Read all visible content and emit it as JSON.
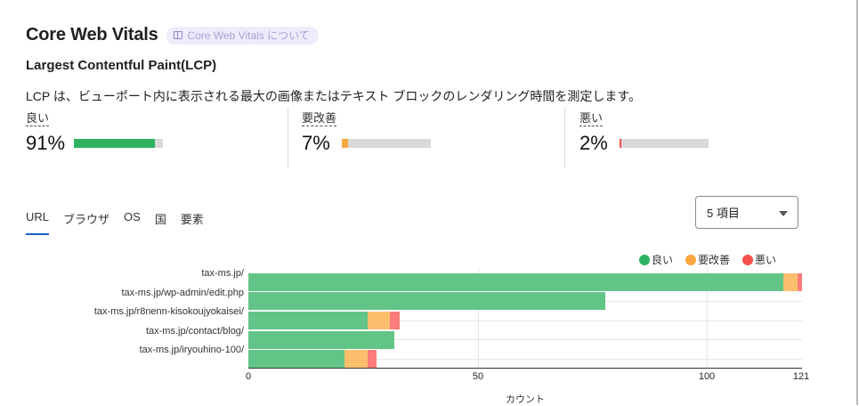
{
  "header": {
    "title": "Core Web Vitals",
    "about_chip": {
      "icon": "book-icon",
      "label": "Core Web Vitals について"
    }
  },
  "section": {
    "title": "Largest Contentful Paint(LCP)",
    "description": "LCP は、ビューポート内に表示される最大の画像またはテキスト ブロックのレンダリング時間を測定します。"
  },
  "metrics": [
    {
      "label": "良い",
      "value": "91%",
      "percent": 91,
      "color": "#2db360"
    },
    {
      "label": "要改善",
      "value": "7%",
      "percent": 7,
      "color": "#f9a73e"
    },
    {
      "label": "悪い",
      "value": "2%",
      "percent": 2,
      "color": "#f5504a"
    }
  ],
  "tabs": [
    {
      "label": "URL",
      "active": true
    },
    {
      "label": "ブラウザ",
      "active": false
    },
    {
      "label": "OS",
      "active": false
    },
    {
      "label": "国",
      "active": false
    },
    {
      "label": "要素",
      "active": false
    }
  ],
  "item_select": {
    "value": "5 項目",
    "icon": "caret-down-icon"
  },
  "legend": [
    {
      "label": "良い",
      "color": "#2db360"
    },
    {
      "label": "要改善",
      "color": "#f9a73e"
    },
    {
      "label": "悪い",
      "color": "#f5504a"
    }
  ],
  "chart_data": {
    "type": "bar",
    "orientation": "horizontal",
    "stacked": true,
    "categories": [
      "tax-ms.jp/",
      "tax-ms.jp/wp-admin/edit.php",
      "tax-ms.jp/r8nenn-kisokoujyokaisei/",
      "tax-ms.jp/contact/blog/",
      "tax-ms.jp/iryouhino-100/"
    ],
    "series": [
      {
        "name": "良い",
        "color": "#62c587",
        "values": [
          117,
          78,
          26,
          32,
          21
        ]
      },
      {
        "name": "要改善",
        "color": "#fbbf6e",
        "values": [
          3,
          0,
          5,
          0,
          5
        ]
      },
      {
        "name": "悪い",
        "color": "#fb7c78",
        "values": [
          1,
          0,
          2,
          0,
          2
        ]
      }
    ],
    "xlabel": "カウント",
    "ylabel": "",
    "xlim": [
      0,
      121
    ],
    "xticks": [
      0,
      50,
      100,
      121
    ],
    "legend_position": "top-right",
    "grid": true
  }
}
